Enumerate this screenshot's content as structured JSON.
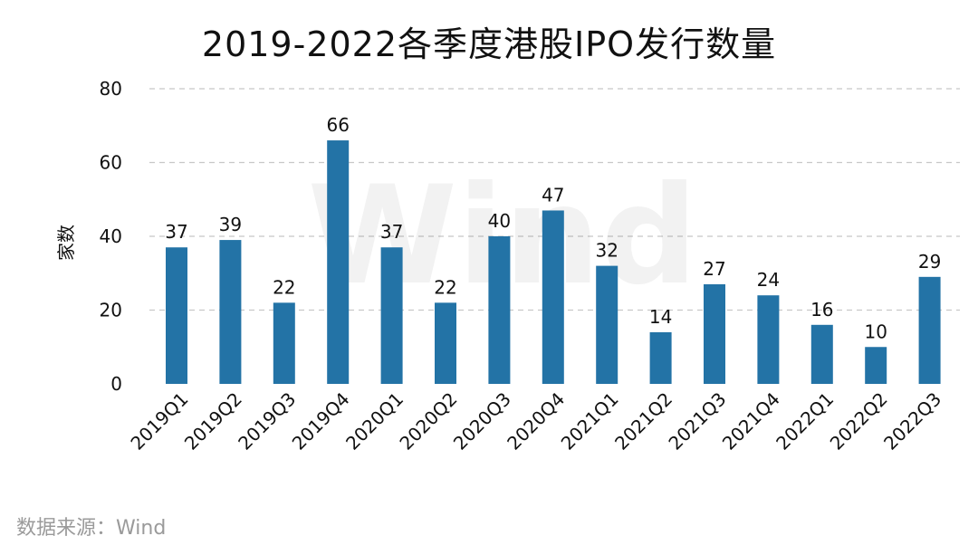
{
  "chart_data": {
    "type": "bar",
    "title": "2019-2022各季度港股IPO发行数量",
    "ylabel": "家数",
    "xlabel": "",
    "ylim": [
      0,
      80
    ],
    "yticks": [
      0,
      20,
      40,
      60,
      80
    ],
    "grid": true,
    "bar_color": "#2373A6",
    "grid_color": "#C8C8C8",
    "categories": [
      "2019Q1",
      "2019Q2",
      "2019Q3",
      "2019Q4",
      "2020Q1",
      "2020Q2",
      "2020Q3",
      "2020Q4",
      "2021Q1",
      "2021Q2",
      "2021Q3",
      "2021Q4",
      "2022Q1",
      "2022Q2",
      "2022Q3"
    ],
    "values": [
      37,
      39,
      22,
      66,
      37,
      22,
      40,
      47,
      32,
      14,
      27,
      24,
      16,
      10,
      29
    ],
    "watermark": "Wind"
  },
  "source": "数据来源：Wind"
}
